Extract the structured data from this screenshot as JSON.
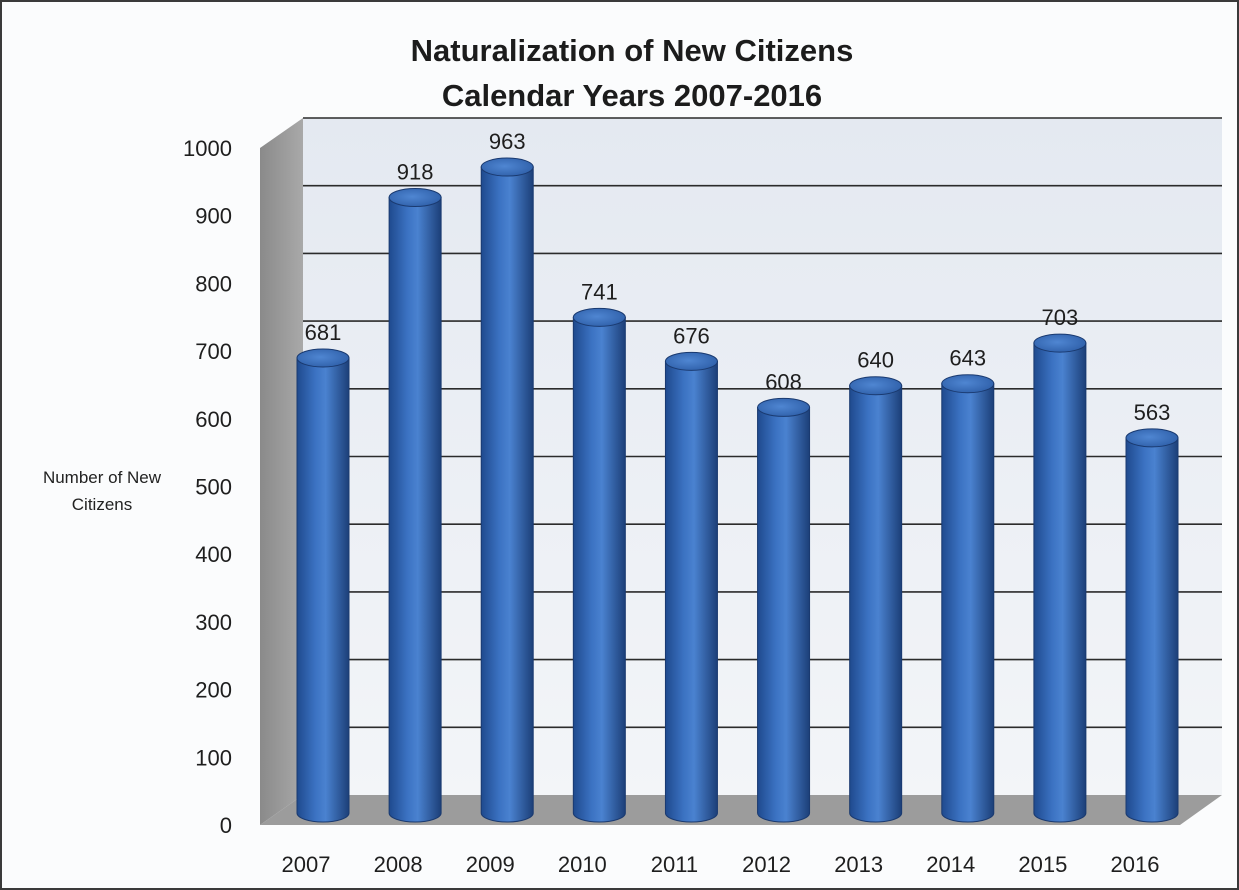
{
  "chart_data": {
    "type": "bar",
    "title": "Naturalization of New Citizens",
    "subtitle": "Calendar Years 2007-2016",
    "ylabel": "Number of New Citizens",
    "xlabel": "",
    "categories": [
      "2007",
      "2008",
      "2009",
      "2010",
      "2011",
      "2012",
      "2013",
      "2014",
      "2015",
      "2016"
    ],
    "values": [
      681,
      918,
      963,
      741,
      676,
      608,
      640,
      643,
      703,
      563
    ],
    "data_labels": [
      "681",
      "918",
      "963",
      "741",
      "676",
      "608",
      "640",
      "643",
      "703",
      "563"
    ],
    "ylim": [
      0,
      1000
    ],
    "yticks": [
      "0",
      "100",
      "200",
      "300",
      "400",
      "500",
      "600",
      "700",
      "800",
      "900",
      "1000"
    ],
    "grid": true,
    "legend": false,
    "style": "3d-cylinder",
    "colors": {
      "bar": "#2e5ea8",
      "bar_light": "#5b8fd6",
      "bar_dark": "#1c3f78",
      "wall": "#e6ebf2",
      "floor": "#9a9a9a",
      "gridline": "#2b2b2b"
    }
  }
}
